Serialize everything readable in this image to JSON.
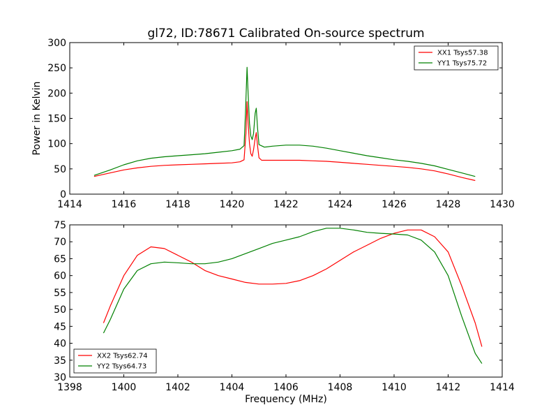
{
  "title": "gl72, ID:78671 Calibrated On-source spectrum",
  "colors": {
    "series_red": "#ff0000",
    "series_green": "#008000"
  },
  "chart_data": [
    {
      "type": "line",
      "title": "gl72, ID:78671 Calibrated On-source spectrum",
      "xlabel": "",
      "ylabel": "Power in Kelvin",
      "xlim": [
        1414,
        1430
      ],
      "ylim": [
        0,
        300
      ],
      "xticks": [
        1414,
        1416,
        1418,
        1420,
        1422,
        1424,
        1426,
        1428,
        1430
      ],
      "yticks": [
        0,
        50,
        100,
        150,
        200,
        250,
        300
      ],
      "legend_position": "top-right",
      "series": [
        {
          "name": "XX1 Tsys57.38",
          "color": "#ff0000",
          "points": [
            [
              1414.9,
              35
            ],
            [
              1415.5,
              42
            ],
            [
              1416,
              48
            ],
            [
              1416.5,
              52
            ],
            [
              1417,
              55
            ],
            [
              1417.5,
              57
            ],
            [
              1418,
              58
            ],
            [
              1418.5,
              59
            ],
            [
              1419,
              60
            ],
            [
              1419.5,
              61
            ],
            [
              1420,
              62
            ],
            [
              1420.3,
              64
            ],
            [
              1420.45,
              68
            ],
            [
              1420.52,
              120
            ],
            [
              1420.56,
              183
            ],
            [
              1420.6,
              140
            ],
            [
              1420.65,
              100
            ],
            [
              1420.7,
              80
            ],
            [
              1420.75,
              75
            ],
            [
              1420.8,
              88
            ],
            [
              1420.86,
              110
            ],
            [
              1420.9,
              122
            ],
            [
              1420.95,
              95
            ],
            [
              1421.0,
              72
            ],
            [
              1421.1,
              67
            ],
            [
              1421.5,
              67
            ],
            [
              1422,
              67
            ],
            [
              1422.5,
              67
            ],
            [
              1423,
              66
            ],
            [
              1423.5,
              65
            ],
            [
              1424,
              63
            ],
            [
              1424.5,
              61
            ],
            [
              1425,
              59
            ],
            [
              1425.5,
              57
            ],
            [
              1426,
              55
            ],
            [
              1426.5,
              53
            ],
            [
              1427,
              50
            ],
            [
              1427.5,
              46
            ],
            [
              1428,
              40
            ],
            [
              1428.5,
              33
            ],
            [
              1429,
              27
            ]
          ]
        },
        {
          "name": "YY1 Tsys75.72",
          "color": "#008000",
          "points": [
            [
              1414.9,
              37
            ],
            [
              1415.5,
              48
            ],
            [
              1416,
              58
            ],
            [
              1416.5,
              66
            ],
            [
              1417,
              71
            ],
            [
              1417.5,
              74
            ],
            [
              1418,
              76
            ],
            [
              1418.5,
              78
            ],
            [
              1419,
              80
            ],
            [
              1419.5,
              83
            ],
            [
              1420,
              86
            ],
            [
              1420.3,
              89
            ],
            [
              1420.45,
              96
            ],
            [
              1420.5,
              160
            ],
            [
              1420.56,
              251
            ],
            [
              1420.6,
              200
            ],
            [
              1420.65,
              140
            ],
            [
              1420.7,
              115
            ],
            [
              1420.75,
              108
            ],
            [
              1420.8,
              120
            ],
            [
              1420.86,
              160
            ],
            [
              1420.9,
              170
            ],
            [
              1420.95,
              130
            ],
            [
              1421.0,
              98
            ],
            [
              1421.2,
              93
            ],
            [
              1421.5,
              95
            ],
            [
              1422,
              97
            ],
            [
              1422.5,
              97
            ],
            [
              1423,
              95
            ],
            [
              1423.5,
              91
            ],
            [
              1424,
              86
            ],
            [
              1424.5,
              81
            ],
            [
              1425,
              76
            ],
            [
              1425.5,
              72
            ],
            [
              1426,
              68
            ],
            [
              1426.5,
              65
            ],
            [
              1427,
              61
            ],
            [
              1427.5,
              56
            ],
            [
              1428,
              49
            ],
            [
              1428.5,
              42
            ],
            [
              1429,
              35
            ]
          ]
        }
      ]
    },
    {
      "type": "line",
      "title": "",
      "xlabel": "Frequency (MHz)",
      "ylabel": "",
      "xlim": [
        1398,
        1414
      ],
      "ylim": [
        30,
        75
      ],
      "xticks": [
        1398,
        1400,
        1402,
        1404,
        1406,
        1408,
        1410,
        1412,
        1414
      ],
      "yticks": [
        30,
        35,
        40,
        45,
        50,
        55,
        60,
        65,
        70,
        75
      ],
      "legend_position": "bottom-left",
      "series": [
        {
          "name": "XX2 Tsys62.74",
          "color": "#ff0000",
          "points": [
            [
              1399.25,
              46
            ],
            [
              1399.5,
              51
            ],
            [
              1400,
              60
            ],
            [
              1400.5,
              66
            ],
            [
              1401,
              68.5
            ],
            [
              1401.5,
              68
            ],
            [
              1402,
              66
            ],
            [
              1402.5,
              64
            ],
            [
              1403,
              61.5
            ],
            [
              1403.5,
              60
            ],
            [
              1404,
              59
            ],
            [
              1404.5,
              58
            ],
            [
              1405,
              57.5
            ],
            [
              1405.5,
              57.5
            ],
            [
              1406,
              57.7
            ],
            [
              1406.5,
              58.5
            ],
            [
              1407,
              60
            ],
            [
              1407.5,
              62
            ],
            [
              1408,
              64.5
            ],
            [
              1408.5,
              67
            ],
            [
              1409,
              69
            ],
            [
              1409.5,
              71
            ],
            [
              1410,
              72.5
            ],
            [
              1410.5,
              73.5
            ],
            [
              1411,
              73.5
            ],
            [
              1411.5,
              71.5
            ],
            [
              1412,
              67
            ],
            [
              1412.5,
              57
            ],
            [
              1413,
              46
            ],
            [
              1413.25,
              39
            ]
          ]
        },
        {
          "name": "YY2 Tsys64.73",
          "color": "#008000",
          "points": [
            [
              1399.25,
              43
            ],
            [
              1399.5,
              47
            ],
            [
              1400,
              56
            ],
            [
              1400.5,
              61.5
            ],
            [
              1401,
              63.5
            ],
            [
              1401.5,
              64
            ],
            [
              1402,
              63.8
            ],
            [
              1402.5,
              63.5
            ],
            [
              1403,
              63.5
            ],
            [
              1403.5,
              64
            ],
            [
              1404,
              65
            ],
            [
              1404.5,
              66.5
            ],
            [
              1405,
              68
            ],
            [
              1405.5,
              69.5
            ],
            [
              1406,
              70.5
            ],
            [
              1406.5,
              71.5
            ],
            [
              1407,
              73
            ],
            [
              1407.5,
              74
            ],
            [
              1408,
              74
            ],
            [
              1408.5,
              73.5
            ],
            [
              1409,
              72.8
            ],
            [
              1409.5,
              72.5
            ],
            [
              1410,
              72.3
            ],
            [
              1410.5,
              72
            ],
            [
              1411,
              70.5
            ],
            [
              1411.5,
              67
            ],
            [
              1412,
              60
            ],
            [
              1412.5,
              48
            ],
            [
              1413,
              37
            ],
            [
              1413.25,
              34
            ]
          ]
        }
      ]
    }
  ]
}
